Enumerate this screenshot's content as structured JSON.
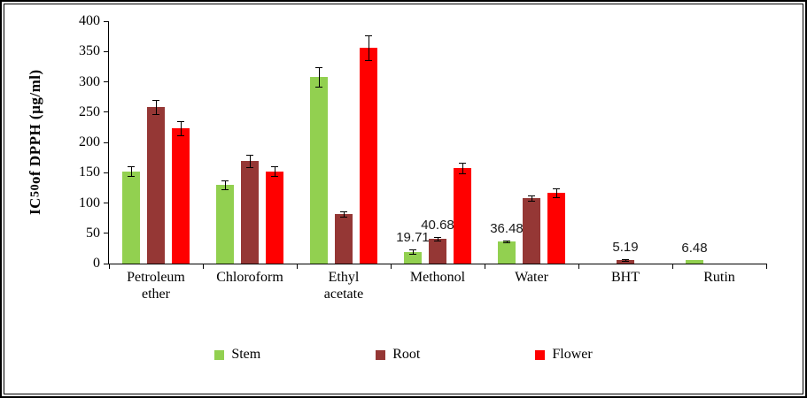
{
  "figure": {
    "y_axis_title": {
      "prefix": "IC",
      "sub": "50",
      "suffix": " of DPPH (µg/ml)"
    }
  },
  "chart_data": {
    "type": "bar",
    "title": "",
    "xlabel": "",
    "ylabel": "IC50 of DPPH (µg/ml)",
    "ylim": [
      0,
      400
    ],
    "ytick_step": 50,
    "grid": false,
    "legend_position": "bottom",
    "error_bars": true,
    "categories": [
      "Petroleum ether",
      "Chloroform",
      "Ethyl acetate",
      "Methonol",
      "Water",
      "BHT",
      "Rutin"
    ],
    "categories_display": [
      [
        "Petroleum",
        "ether"
      ],
      [
        "Chloroform"
      ],
      [
        "Ethyl",
        "acetate"
      ],
      [
        "Methonol"
      ],
      [
        "Water"
      ],
      [
        "BHT"
      ],
      [
        "Rutin"
      ]
    ],
    "series": [
      {
        "name": "Stem",
        "color": "#92D050",
        "values": [
          152,
          130,
          308,
          19.71,
          36.48,
          0,
          6.48
        ],
        "errors": [
          8,
          7,
          16,
          4,
          2,
          0,
          0
        ],
        "value_labels": [
          "",
          "",
          "",
          "19.71",
          "36.48",
          "",
          "6.48"
        ]
      },
      {
        "name": "Root",
        "color": "#953735",
        "values": [
          258,
          169,
          82,
          40.68,
          108,
          5.19,
          0
        ],
        "errors": [
          12,
          10,
          4,
          3,
          5,
          1.5,
          0
        ],
        "value_labels": [
          "",
          "",
          "",
          "40.68",
          "",
          "5.19",
          ""
        ]
      },
      {
        "name": "Flower",
        "color": "#FF0000",
        "values": [
          223,
          152,
          356,
          158,
          117,
          0,
          0
        ],
        "errors": [
          12,
          8,
          20,
          9,
          7,
          0,
          0
        ],
        "value_labels": [
          "",
          "",
          "",
          "",
          "",
          "",
          ""
        ]
      }
    ]
  }
}
